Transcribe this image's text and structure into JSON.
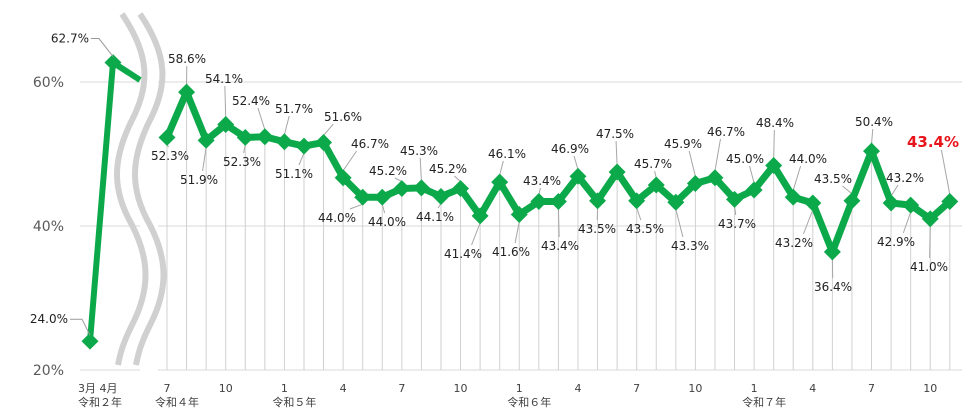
{
  "chart_data": {
    "type": "line",
    "title": "",
    "xlabel": "",
    "ylabel": "",
    "ylim": [
      20,
      62
    ],
    "yticks": [
      "20%",
      "40%",
      "60%"
    ],
    "ytick_values": [
      20,
      40,
      60
    ],
    "grid": true,
    "axis_break": "between 令和2年4月 and 令和4年7月",
    "series_color": "#0ca94b",
    "highlight_color": "#e8141c",
    "early": {
      "months_label": "3月 4月",
      "year_label": "令和２年",
      "points": [
        {
          "month": "3月",
          "value": 24.0,
          "label": "24.0%"
        },
        {
          "month": "4月",
          "value": 62.7,
          "label": "62.7%"
        }
      ]
    },
    "x_tick_labels": [
      {
        "index": 0,
        "text": "7"
      },
      {
        "index": 3,
        "text": "10"
      },
      {
        "index": 6,
        "text": "1"
      },
      {
        "index": 9,
        "text": "4"
      },
      {
        "index": 12,
        "text": "7"
      },
      {
        "index": 15,
        "text": "10"
      },
      {
        "index": 18,
        "text": "1"
      },
      {
        "index": 21,
        "text": "4"
      },
      {
        "index": 24,
        "text": "7"
      },
      {
        "index": 27,
        "text": "10"
      },
      {
        "index": 30,
        "text": "1"
      },
      {
        "index": 33,
        "text": "4"
      },
      {
        "index": 36,
        "text": "7"
      },
      {
        "index": 39,
        "text": "10"
      }
    ],
    "year_labels": [
      {
        "index": 0,
        "text": "令和４年"
      },
      {
        "index": 6,
        "text": "令和５年"
      },
      {
        "index": 18,
        "text": "令和６年"
      },
      {
        "index": 30,
        "text": "令和７年"
      }
    ],
    "values": [
      52.3,
      58.6,
      51.9,
      54.1,
      52.3,
      52.4,
      51.7,
      51.1,
      51.6,
      46.7,
      44.0,
      44.0,
      45.2,
      45.3,
      44.1,
      45.2,
      41.4,
      46.1,
      41.6,
      43.4,
      43.4,
      46.9,
      43.5,
      47.5,
      43.5,
      45.7,
      43.3,
      45.9,
      46.7,
      43.7,
      45.0,
      48.4,
      44.0,
      43.2,
      36.4,
      43.5,
      50.4,
      43.2,
      42.9,
      41.0,
      43.4
    ],
    "labels": [
      "52.3%",
      "58.6%",
      "51.9%",
      "54.1%",
      "52.3%",
      "52.4%",
      "51.7%",
      "51.1%",
      "51.6%",
      "46.7%",
      "44.0%",
      "44.0%",
      "45.2%",
      "45.3%",
      "44.1%",
      "45.2%",
      "41.4%",
      "46.1%",
      "41.6%",
      "43.4%",
      "43.4%",
      "46.9%",
      "43.5%",
      "47.5%",
      "43.5%",
      "45.7%",
      "43.3%",
      "45.9%",
      "46.7%",
      "43.7%",
      "45.0%",
      "48.4%",
      "44.0%",
      "43.2%",
      "36.4%",
      "43.5%",
      "50.4%",
      "43.2%",
      "42.9%",
      "41.0%",
      "43.4%"
    ],
    "label_side": [
      "below",
      "above",
      "below",
      "above",
      "below",
      "above",
      "above",
      "below",
      "above",
      "above",
      "below",
      "below",
      "above",
      "above",
      "below",
      "above",
      "below",
      "above",
      "below",
      "above",
      "below",
      "above",
      "below",
      "above",
      "below",
      "above",
      "below",
      "above",
      "above",
      "below",
      "above",
      "above",
      "above",
      "below",
      "below",
      "above",
      "above",
      "above",
      "below",
      "below",
      "above"
    ],
    "highlight_index": 40
  }
}
